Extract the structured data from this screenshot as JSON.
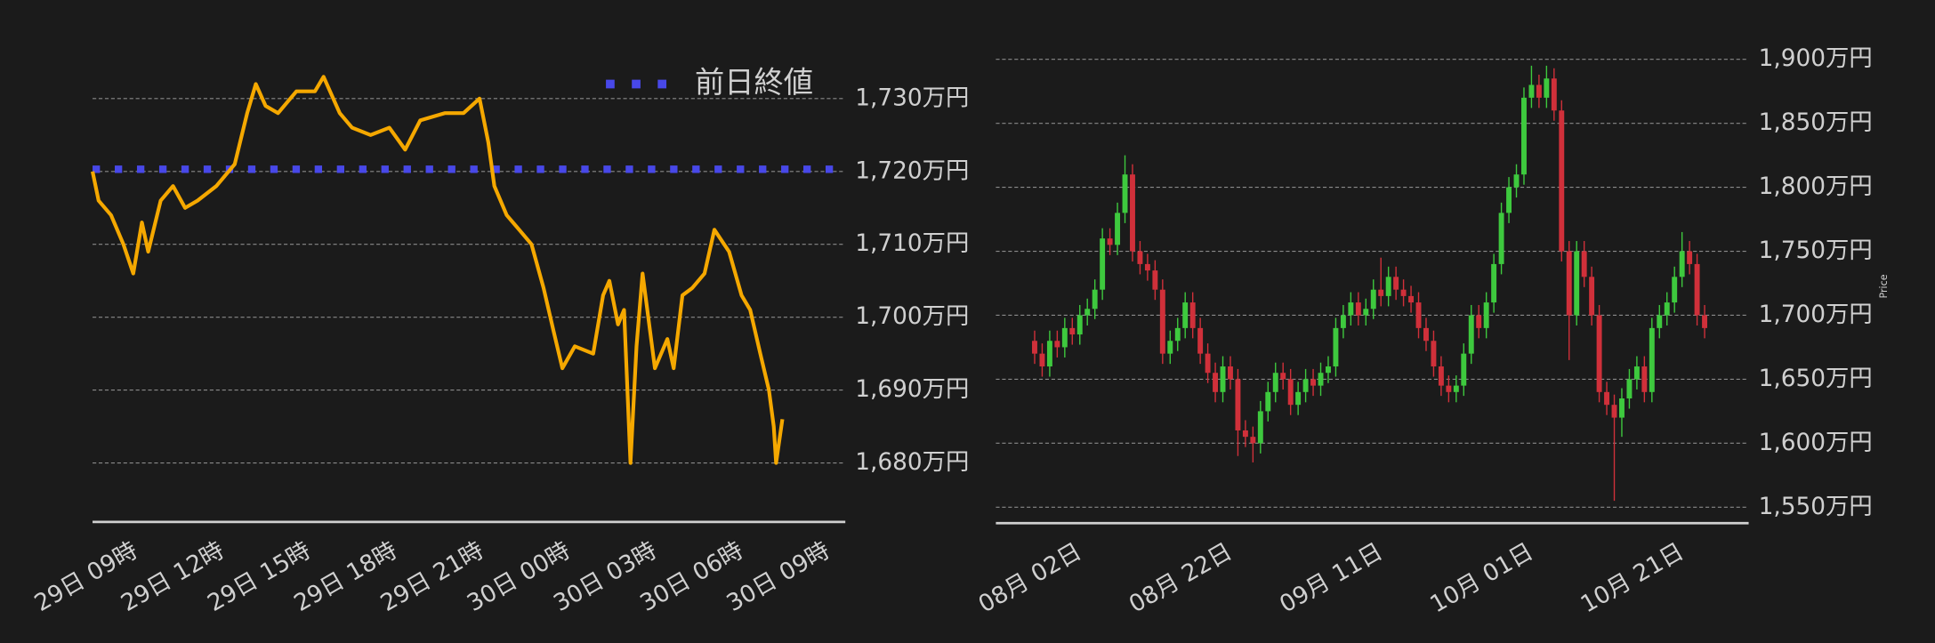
{
  "chart_data": [
    {
      "type": "line",
      "color": "#f5a800",
      "x": [
        7.5,
        7.71,
        8.14,
        8.57,
        8.91,
        9.21,
        9.43,
        9.86,
        10.29,
        10.71,
        11.14,
        11.79,
        12.43,
        12.86,
        13.16,
        13.5,
        13.93,
        14.57,
        15.21,
        15.51,
        16.07,
        16.5,
        17.14,
        17.79,
        18.34,
        18.86,
        19.71,
        20.36,
        20.92,
        21.22,
        21.43,
        21.86,
        22.29,
        22.72,
        23.14,
        23.49,
        23.79,
        24.22,
        24.86,
        25.2,
        25.42,
        25.72,
        25.93,
        26.15,
        26.36,
        26.57,
        27.0,
        27.43,
        27.65,
        27.95,
        28.29,
        28.72,
        29.06,
        29.57,
        30.0,
        30.3,
        30.65,
        30.95,
        31.12,
        31.2,
        31.42
      ],
      "values": [
        1720,
        1716,
        1714,
        1710,
        1706,
        1713,
        1709,
        1716,
        1718,
        1715,
        1716,
        1718,
        1721,
        1728,
        1732,
        1729,
        1728,
        1731,
        1731,
        1733,
        1728,
        1726,
        1725,
        1726,
        1723,
        1727,
        1728,
        1728,
        1730,
        1724,
        1718,
        1714,
        1712,
        1710,
        1704,
        1698,
        1693,
        1696,
        1695,
        1703,
        1705,
        1699,
        1701,
        1680,
        1696,
        1706,
        1693,
        1697,
        1693,
        1703,
        1704,
        1706,
        1712,
        1709,
        1703,
        1701,
        1695,
        1690,
        1685,
        1680,
        1686
      ],
      "reference_line": {
        "name": "前日終値",
        "value": 1720.3,
        "color": "#4848e8"
      },
      "xlim": [
        7.5,
        33.6
      ],
      "xticks": [
        {
          "value": 9,
          "label": "29日 09時"
        },
        {
          "value": 12,
          "label": "29日 12時"
        },
        {
          "value": 15,
          "label": "29日 15時"
        },
        {
          "value": 18,
          "label": "29日 18時"
        },
        {
          "value": 21,
          "label": "29日 21時"
        },
        {
          "value": 24,
          "label": "30日 00時"
        },
        {
          "value": 27,
          "label": "30日 03時"
        },
        {
          "value": 30,
          "label": "30日 06時"
        },
        {
          "value": 33,
          "label": "30日 09時"
        }
      ],
      "ylim": [
        1671.9,
        1734.2
      ],
      "yticks": [
        {
          "value": 1680,
          "label": "1,680万円"
        },
        {
          "value": 1690,
          "label": "1,690万円"
        },
        {
          "value": 1700,
          "label": "1,700万円"
        },
        {
          "value": 1710,
          "label": "1,710万円"
        },
        {
          "value": 1720,
          "label": "1,720万円"
        },
        {
          "value": 1730,
          "label": "1,730万円"
        }
      ],
      "grid": true
    },
    {
      "type": "candlestick",
      "up_color": "#3ec93e",
      "down_color": "#d0303a",
      "y_label": "Price",
      "x": [
        -6,
        -5,
        -4,
        -3,
        -2,
        -1,
        0,
        1,
        2,
        3,
        4,
        5,
        6,
        7,
        8,
        9,
        10,
        11,
        12,
        13,
        14,
        15,
        16,
        17,
        18,
        19,
        20,
        21,
        22,
        23,
        24,
        25,
        26,
        27,
        28,
        29,
        30,
        31,
        32,
        33,
        34,
        35,
        36,
        37,
        38,
        39,
        40,
        41,
        42,
        43,
        44,
        45,
        46,
        47,
        48,
        49,
        50,
        51,
        52,
        53,
        54,
        55,
        56,
        57,
        58,
        59,
        60,
        61,
        62,
        63,
        64,
        65,
        66,
        67,
        68,
        69,
        70,
        71,
        72,
        73,
        74,
        75,
        76,
        77,
        78,
        79,
        80,
        81,
        82,
        83
      ],
      "open": [
        1680,
        1670,
        1660,
        1680,
        1675,
        1690,
        1685,
        1700,
        1705,
        1720,
        1760,
        1755,
        1780,
        1810,
        1750,
        1740,
        1735,
        1720,
        1670,
        1680,
        1690,
        1710,
        1690,
        1670,
        1655,
        1640,
        1660,
        1650,
        1610,
        1605,
        1600,
        1625,
        1640,
        1655,
        1650,
        1630,
        1640,
        1650,
        1645,
        1655,
        1660,
        1690,
        1700,
        1710,
        1700,
        1705,
        1720,
        1715,
        1730,
        1720,
        1715,
        1710,
        1690,
        1680,
        1660,
        1645,
        1640,
        1645,
        1670,
        1700,
        1690,
        1710,
        1740,
        1780,
        1800,
        1810,
        1870,
        1880,
        1870,
        1885,
        1860,
        1750,
        1700,
        1750,
        1730,
        1700,
        1640,
        1630,
        1620,
        1635,
        1650,
        1660,
        1640,
        1690,
        1700,
        1710,
        1730,
        1750,
        1740,
        1700
      ],
      "high": [
        1688,
        1678,
        1688,
        1688,
        1698,
        1698,
        1708,
        1713,
        1728,
        1768,
        1768,
        1788,
        1825,
        1818,
        1758,
        1748,
        1743,
        1728,
        1688,
        1698,
        1718,
        1718,
        1698,
        1678,
        1663,
        1668,
        1668,
        1658,
        1618,
        1613,
        1633,
        1648,
        1663,
        1663,
        1658,
        1648,
        1658,
        1658,
        1663,
        1668,
        1698,
        1708,
        1718,
        1718,
        1713,
        1728,
        1745,
        1738,
        1738,
        1728,
        1723,
        1718,
        1698,
        1688,
        1668,
        1653,
        1653,
        1678,
        1708,
        1708,
        1718,
        1748,
        1788,
        1808,
        1818,
        1878,
        1895,
        1888,
        1895,
        1893,
        1868,
        1758,
        1758,
        1758,
        1738,
        1708,
        1648,
        1638,
        1643,
        1658,
        1668,
        1668,
        1698,
        1708,
        1718,
        1738,
        1765,
        1758,
        1748,
        1708
      ],
      "low": [
        1662,
        1652,
        1652,
        1667,
        1667,
        1677,
        1677,
        1692,
        1697,
        1712,
        1747,
        1747,
        1772,
        1742,
        1732,
        1727,
        1712,
        1662,
        1662,
        1672,
        1682,
        1682,
        1662,
        1647,
        1632,
        1632,
        1642,
        1590,
        1597,
        1585,
        1592,
        1617,
        1632,
        1642,
        1622,
        1622,
        1632,
        1637,
        1637,
        1647,
        1652,
        1682,
        1692,
        1692,
        1692,
        1697,
        1707,
        1707,
        1712,
        1707,
        1702,
        1682,
        1672,
        1652,
        1637,
        1632,
        1632,
        1637,
        1662,
        1682,
        1682,
        1702,
        1732,
        1772,
        1792,
        1802,
        1862,
        1862,
        1862,
        1852,
        1742,
        1665,
        1692,
        1722,
        1692,
        1632,
        1622,
        1555,
        1605,
        1627,
        1642,
        1632,
        1632,
        1682,
        1692,
        1702,
        1722,
        1732,
        1692,
        1682
      ],
      "close": [
        1670,
        1660,
        1680,
        1675,
        1690,
        1685,
        1700,
        1705,
        1720,
        1760,
        1755,
        1780,
        1810,
        1750,
        1740,
        1735,
        1720,
        1670,
        1680,
        1690,
        1710,
        1690,
        1670,
        1655,
        1640,
        1660,
        1650,
        1610,
        1605,
        1600,
        1625,
        1640,
        1655,
        1650,
        1630,
        1640,
        1650,
        1645,
        1655,
        1660,
        1690,
        1700,
        1710,
        1700,
        1705,
        1720,
        1715,
        1730,
        1720,
        1715,
        1710,
        1690,
        1680,
        1660,
        1645,
        1640,
        1645,
        1670,
        1700,
        1690,
        1710,
        1740,
        1780,
        1800,
        1810,
        1870,
        1880,
        1870,
        1885,
        1860,
        1750,
        1700,
        1750,
        1730,
        1700,
        1640,
        1630,
        1620,
        1635,
        1650,
        1660,
        1640,
        1690,
        1700,
        1710,
        1730,
        1750,
        1740,
        1700,
        1690
      ],
      "xlim": [
        -11.15,
        88.85
      ],
      "xticks": [
        {
          "value": 0,
          "label": "08月 02日"
        },
        {
          "value": 20,
          "label": "08月 22日"
        },
        {
          "value": 40,
          "label": "09月 11日"
        },
        {
          "value": 60,
          "label": "10月 01日"
        },
        {
          "value": 80,
          "label": "10月 21日"
        }
      ],
      "ylim": [
        1537.5,
        1912.5
      ],
      "yticks": [
        {
          "value": 1550,
          "label": "1,550万円"
        },
        {
          "value": 1600,
          "label": "1,600万円"
        },
        {
          "value": 1650,
          "label": "1,650万円"
        },
        {
          "value": 1700,
          "label": "1,700万円"
        },
        {
          "value": 1750,
          "label": "1,750万円"
        },
        {
          "value": 1800,
          "label": "1,800万円"
        },
        {
          "value": 1850,
          "label": "1,850万円"
        },
        {
          "value": 1900,
          "label": "1,900万円"
        }
      ],
      "grid": true
    }
  ]
}
